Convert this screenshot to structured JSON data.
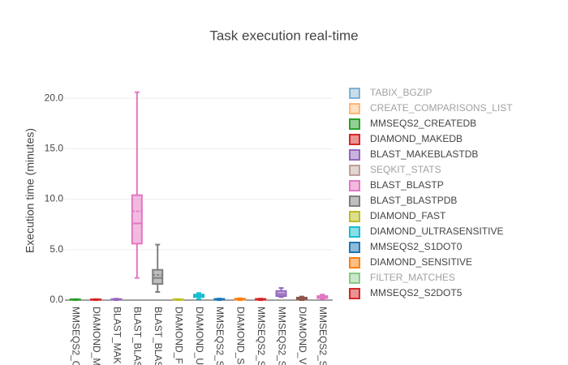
{
  "chart_data": {
    "type": "box",
    "title": "Task execution real-time",
    "y_label": "Execution time (minutes)",
    "ylim": [
      0,
      21.7
    ],
    "yticks": [
      {
        "value": 0,
        "label": "0.0"
      },
      {
        "value": 5,
        "label": "5.0"
      },
      {
        "value": 10,
        "label": "10.0"
      },
      {
        "value": 15,
        "label": "15.0"
      },
      {
        "value": 20,
        "label": "20.0"
      }
    ],
    "grid": true,
    "categories": [
      "MMSEQS2_C",
      "DIAMOND_M",
      "BLAST_MAK",
      "BLAST_BLAS",
      "BLAST_BLAS",
      "DIAMOND_F",
      "DIAMOND_U",
      "MMSEQS2_S",
      "DIAMOND_S",
      "MMSEQS2_S",
      "MMSEQS2_S",
      "DIAMOND_V",
      "MMSEQS2_S"
    ],
    "boxes": [
      {
        "color": "#2ca02c",
        "min": 0,
        "q1": 0.02,
        "median": 0.05,
        "q3": 0.08,
        "max": 0.1
      },
      {
        "color": "#d62728",
        "min": 0,
        "q1": 0.02,
        "median": 0.05,
        "q3": 0.08,
        "max": 0.1
      },
      {
        "color": "#9467bd",
        "min": 0,
        "q1": 0.03,
        "median": 0.06,
        "q3": 0.1,
        "max": 0.14
      },
      {
        "color": "#e377c2",
        "min": 2.2,
        "q1": 5.6,
        "median": 7.6,
        "mean": 8.8,
        "q3": 10.4,
        "max": 20.6
      },
      {
        "color": "#7f7f7f",
        "min": 0.8,
        "q1": 1.6,
        "median": 2.2,
        "mean": 2.5,
        "q3": 3.0,
        "max": 5.5
      },
      {
        "color": "#bcbd22",
        "min": 0,
        "q1": 0.02,
        "median": 0.05,
        "q3": 0.08,
        "max": 0.1
      },
      {
        "color": "#17becf",
        "min": 0.1,
        "q1": 0.3,
        "median": 0.4,
        "q3": 0.55,
        "max": 0.7
      },
      {
        "color": "#1f77b4",
        "min": 0,
        "q1": 0.03,
        "median": 0.07,
        "q3": 0.12,
        "max": 0.15
      },
      {
        "color": "#ff7f0e",
        "min": 0,
        "q1": 0.04,
        "median": 0.08,
        "q3": 0.14,
        "max": 0.18
      },
      {
        "color": "#d62728",
        "min": 0,
        "q1": 0.03,
        "median": 0.07,
        "q3": 0.12,
        "max": 0.15
      },
      {
        "color": "#9467bd",
        "min": 0.3,
        "q1": 0.4,
        "median": 0.6,
        "q3": 0.9,
        "max": 1.2
      },
      {
        "color": "#8c564b",
        "min": 0,
        "q1": 0.05,
        "median": 0.15,
        "q3": 0.25,
        "max": 0.35
      },
      {
        "color": "#e377c2",
        "min": 0.1,
        "q1": 0.2,
        "median": 0.3,
        "q3": 0.4,
        "max": 0.55
      }
    ],
    "legend": [
      {
        "name": "TABIX_BGZIP",
        "color": "#1f77b4",
        "hidden": true
      },
      {
        "name": "CREATE_COMPARISONS_LIST",
        "color": "#ff7f0e",
        "hidden": true
      },
      {
        "name": "MMSEQS2_CREATEDB",
        "color": "#2ca02c",
        "hidden": false
      },
      {
        "name": "DIAMOND_MAKEDB",
        "color": "#d62728",
        "hidden": false
      },
      {
        "name": "BLAST_MAKEBLASTDB",
        "color": "#9467bd",
        "hidden": false
      },
      {
        "name": "SEQKIT_STATS",
        "color": "#8c564b",
        "hidden": true
      },
      {
        "name": "BLAST_BLASTP",
        "color": "#e377c2",
        "hidden": false
      },
      {
        "name": "BLAST_BLASTPDB",
        "color": "#7f7f7f",
        "hidden": false
      },
      {
        "name": "DIAMOND_FAST",
        "color": "#bcbd22",
        "hidden": false
      },
      {
        "name": "DIAMOND_ULTRASENSITIVE",
        "color": "#17becf",
        "hidden": false
      },
      {
        "name": "MMSEQS2_S1DOT0",
        "color": "#1f77b4",
        "hidden": false
      },
      {
        "name": "DIAMOND_SENSITIVE",
        "color": "#ff7f0e",
        "hidden": false
      },
      {
        "name": "FILTER_MATCHES",
        "color": "#2ca02c",
        "hidden": true
      },
      {
        "name": "MMSEQS2_S2DOT5",
        "color": "#d62728",
        "hidden": false
      }
    ]
  }
}
